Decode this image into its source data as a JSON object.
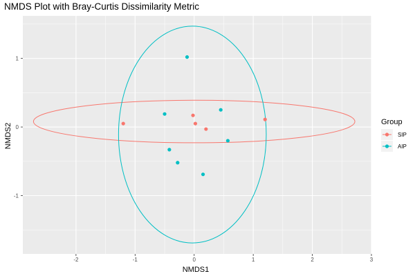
{
  "chart_data": {
    "type": "scatter",
    "title": "NMDS Plot with Bray-Curtis Dissimilarity Metric",
    "xlabel": "NMDS1",
    "ylabel": "NMDS2",
    "xlim": [
      -2.9,
      3.0
    ],
    "ylim": [
      -1.85,
      1.62
    ],
    "x_ticks": [
      -2,
      -1,
      0,
      1,
      2,
      3
    ],
    "y_ticks": [
      -1,
      0,
      1
    ],
    "grid": true,
    "legend": {
      "title": "Group",
      "placement": "right"
    },
    "series": [
      {
        "name": "SIP",
        "color": "#F8766D",
        "points": [
          {
            "x": -1.2,
            "y": 0.05
          },
          {
            "x": -0.02,
            "y": 0.17
          },
          {
            "x": 0.02,
            "y": 0.05
          },
          {
            "x": 0.2,
            "y": -0.03
          },
          {
            "x": 1.2,
            "y": 0.11
          }
        ],
        "ellipse": {
          "cx": 0.0,
          "cy": 0.08,
          "rx": 2.72,
          "ry": 0.31
        }
      },
      {
        "name": "AIP",
        "color": "#00BFC4",
        "points": [
          {
            "x": -0.12,
            "y": 1.02
          },
          {
            "x": -0.5,
            "y": 0.19
          },
          {
            "x": 0.45,
            "y": 0.25
          },
          {
            "x": 0.57,
            "y": -0.2
          },
          {
            "x": -0.42,
            "y": -0.33
          },
          {
            "x": -0.28,
            "y": -0.52
          },
          {
            "x": 0.15,
            "y": -0.69
          }
        ],
        "ellipse": {
          "cx": -0.03,
          "cy": -0.11,
          "rx": 1.25,
          "ry": 1.58
        }
      }
    ]
  }
}
